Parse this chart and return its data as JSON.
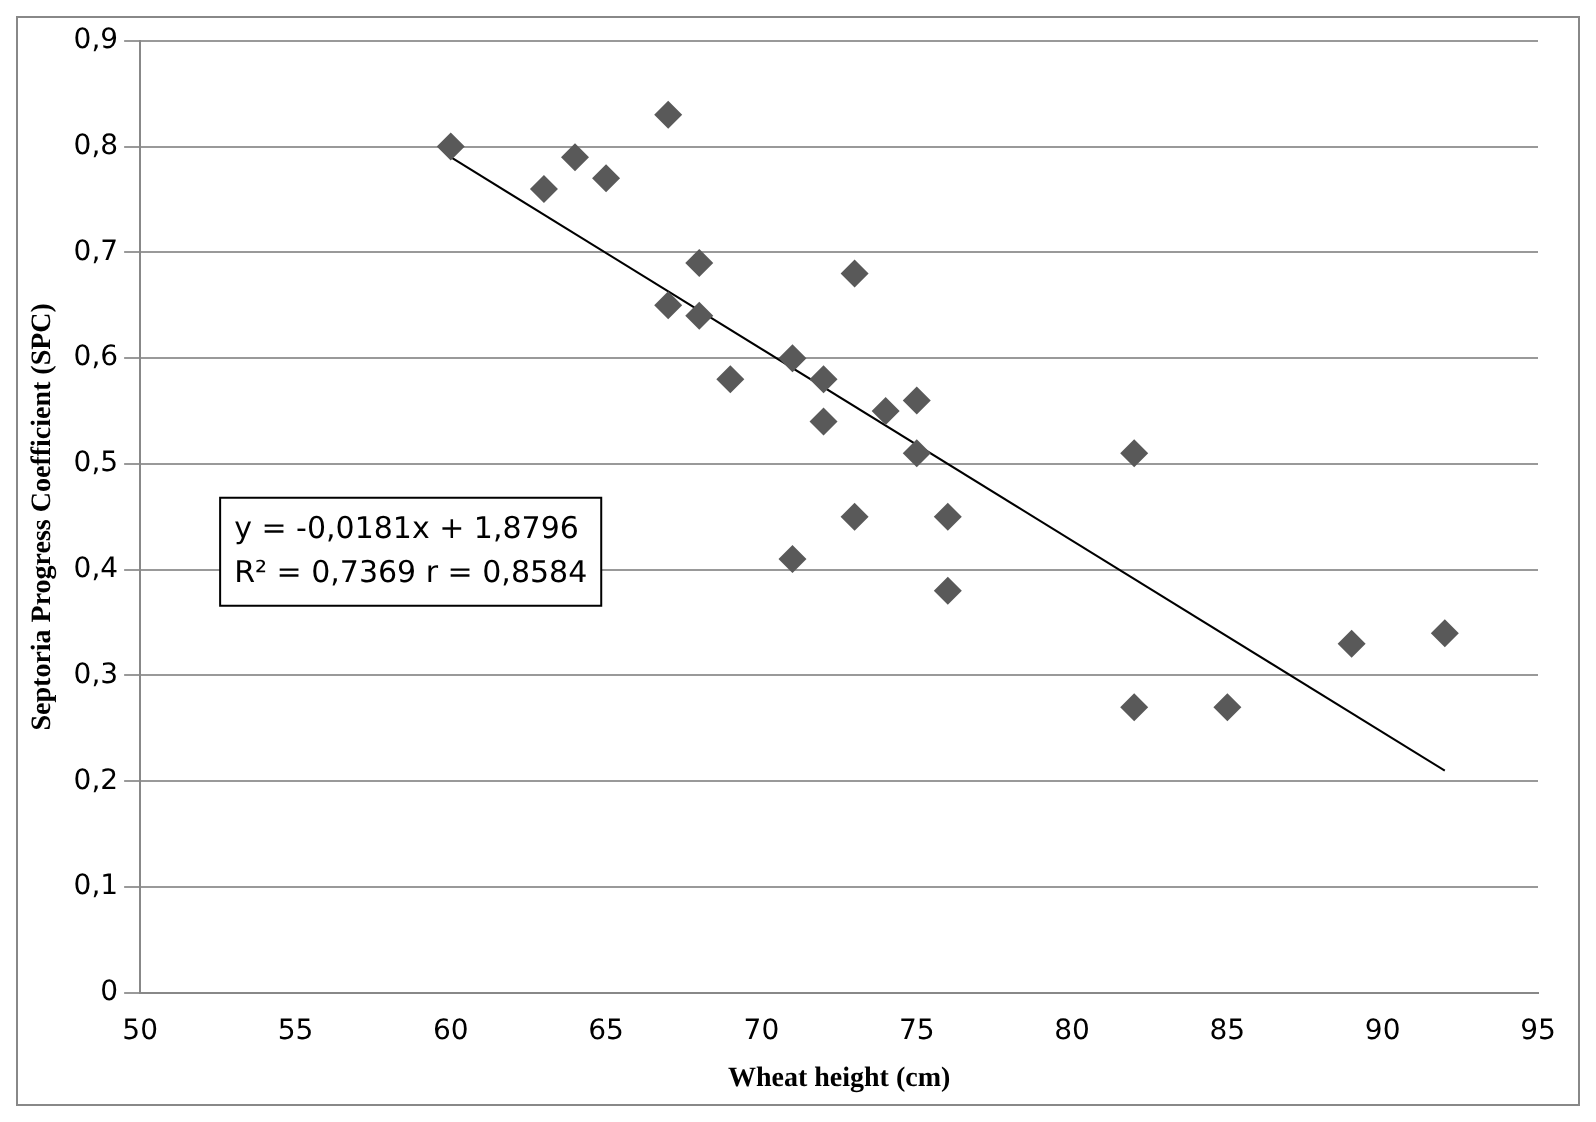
{
  "chart_data": {
    "type": "scatter",
    "xlabel": "Wheat height (cm)",
    "ylabel": "Septoria Progress Coefficient (SPC)",
    "xlim": [
      50,
      95
    ],
    "xticks": [
      50,
      55,
      60,
      65,
      70,
      75,
      80,
      85,
      90,
      95
    ],
    "ylim": [
      0,
      0.9
    ],
    "yticks": [
      0,
      {
        "value": 0.1,
        "label": "0,1"
      },
      {
        "value": 0.2,
        "label": "0,2"
      },
      {
        "value": 0.3,
        "label": "0,3"
      },
      {
        "value": 0.4,
        "label": "0,4"
      },
      {
        "value": 0.5,
        "label": "0,5"
      },
      {
        "value": 0.6,
        "label": "0,6"
      },
      {
        "value": 0.7,
        "label": "0,7"
      },
      {
        "value": 0.8,
        "label": "0,8"
      },
      {
        "value": 0.9,
        "label": "0,9"
      }
    ],
    "grid": "y",
    "legend": false,
    "annotations": [
      "y = -0,0181x + 1,8796",
      "R² = 0,7369 r = 0,8584"
    ],
    "series": [
      {
        "marker": "diamond",
        "color": "#595959",
        "x": [
          60,
          63,
          64,
          65,
          67,
          67,
          68,
          68,
          69,
          71,
          71,
          72,
          72,
          73,
          73,
          74,
          75,
          75,
          76,
          76,
          82,
          82,
          85,
          89,
          92
        ],
        "values": [
          0.8,
          0.76,
          0.79,
          0.77,
          0.83,
          0.65,
          0.69,
          0.64,
          0.58,
          0.6,
          0.41,
          0.58,
          0.54,
          0.68,
          0.45,
          0.55,
          0.56,
          0.51,
          0.45,
          0.38,
          0.51,
          0.27,
          0.27,
          0.33,
          0.34
        ]
      },
      {
        "type": "line",
        "color": "#000000",
        "x": [
          60,
          92
        ],
        "values": [
          0.79,
          0.21
        ]
      }
    ]
  }
}
